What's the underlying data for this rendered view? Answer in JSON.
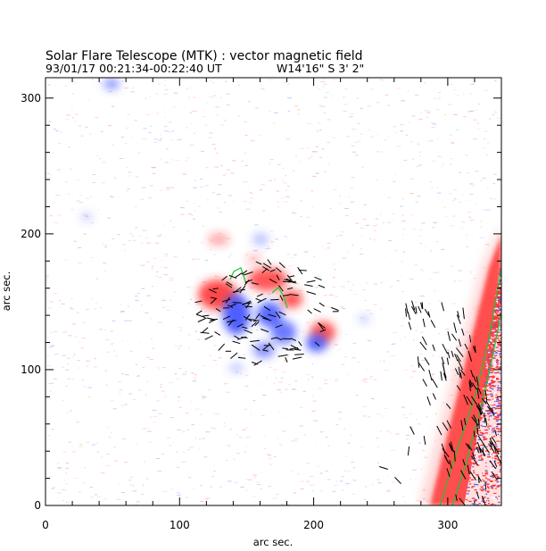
{
  "header": {
    "title": "Solar Flare Telescope (MTK) : vector magnetic field",
    "subtitle_date_time": "93/01/17  00:21:34-00:22:40 UT",
    "subtitle_position": "W14'16\"  S 3' 2\""
  },
  "axes": {
    "xlabel": "arc sec.",
    "ylabel": "arc sec.",
    "xlim": [
      0,
      340
    ],
    "ylim": [
      0,
      315
    ],
    "x_ticks": [
      "0",
      "100",
      "200",
      "300"
    ],
    "y_ticks": [
      "0",
      "100",
      "200",
      "300"
    ],
    "x_tick_values": [
      0,
      100,
      200,
      300
    ],
    "y_tick_values": [
      0,
      100,
      200,
      300
    ]
  },
  "colors": {
    "positive_polarity": "#ff2a2a",
    "negative_polarity": "#3a4cff",
    "neutral_line": "#19c832",
    "transverse_vectors": "#000000",
    "background": "#ffffff"
  }
}
